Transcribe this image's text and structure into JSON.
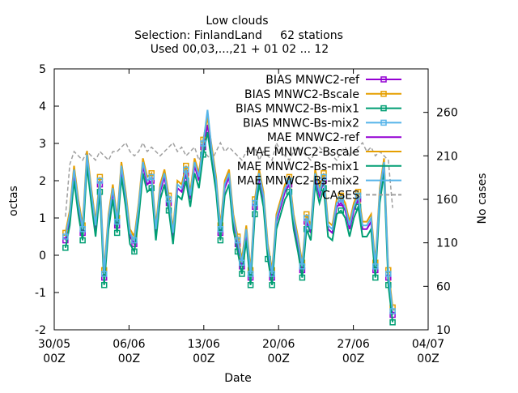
{
  "chart_data": {
    "type": "line",
    "title_lines": [
      "Low clouds",
      "Selection: FinlandLand     62 stations",
      "Used 00,03,...,21 + 01 02 ... 12"
    ],
    "xlabel": "Date",
    "ylabel": "octas",
    "y2label": "No cases",
    "ylim": [
      -2,
      5
    ],
    "yticks": [
      "-2",
      "-1",
      "0",
      "1",
      "2",
      "3",
      "4",
      "5"
    ],
    "y2lim": [
      10,
      310
    ],
    "y2ticks": [
      "10",
      "60",
      "110",
      "160",
      "210",
      "260"
    ],
    "xlim": [
      "2023-05-30 00Z",
      "2023-07-04 00Z"
    ],
    "xticks": [
      {
        "line1": "30/05",
        "line2": "00Z"
      },
      {
        "line1": "06/06",
        "line2": "00Z"
      },
      {
        "line1": "13/06",
        "line2": "00Z"
      },
      {
        "line1": "20/06",
        "line2": "00Z"
      },
      {
        "line1": "27/06",
        "line2": "00Z"
      },
      {
        "line1": "04/07",
        "line2": "00Z"
      }
    ],
    "grid": false,
    "legend_position": "top-right",
    "series": [
      {
        "name": "BIAS MNWC2-ref",
        "color": "#9400d3",
        "marker": "square",
        "axis": "y1",
        "values": [
          0.4,
          1.0,
          2.2,
          1.3,
          0.6,
          2.6,
          1.6,
          0.7,
          1.9,
          -0.6,
          0.9,
          1.7,
          0.8,
          2.3,
          1.5,
          0.5,
          0.3,
          1.2,
          2.4,
          1.9,
          2.0,
          0.6,
          1.7,
          2.1,
          1.4,
          0.5,
          1.8,
          1.7,
          2.2,
          1.5,
          2.4,
          2.0,
          2.9,
          3.5,
          2.7,
          1.9,
          0.6,
          1.8,
          2.1,
          0.9,
          0.3,
          -0.3,
          0.6,
          -0.6,
          1.3,
          2.1,
          1.5,
          0.1,
          -0.6,
          0.9,
          1.3,
          1.7,
          1.9,
          0.9,
          0.3,
          -0.4,
          0.9,
          0.6,
          2.1,
          1.6,
          2.0,
          0.7,
          0.6,
          1.3,
          1.4,
          1.2,
          0.7,
          1.2,
          1.5,
          0.7,
          0.7,
          0.9,
          -0.4,
          1.6,
          2.4,
          -0.6,
          -1.6
        ]
      },
      {
        "name": "BIAS MNWC2-Bscale",
        "color": "#e69f00",
        "marker": "square",
        "axis": "y1",
        "values": [
          0.6,
          1.2,
          2.4,
          1.5,
          0.8,
          2.8,
          1.8,
          0.9,
          2.1,
          -0.4,
          1.1,
          1.9,
          1.0,
          2.5,
          1.7,
          0.7,
          0.5,
          1.4,
          2.6,
          2.1,
          2.2,
          0.8,
          1.9,
          2.3,
          1.6,
          0.7,
          2.0,
          1.9,
          2.4,
          1.7,
          2.6,
          2.2,
          3.1,
          3.7,
          2.9,
          2.1,
          0.8,
          2.0,
          2.3,
          1.1,
          0.5,
          -0.1,
          0.8,
          -0.4,
          1.5,
          2.3,
          1.7,
          0.3,
          -0.4,
          1.1,
          1.5,
          1.9,
          2.1,
          1.1,
          0.5,
          -0.2,
          1.1,
          0.8,
          2.3,
          1.8,
          2.2,
          0.9,
          0.8,
          1.5,
          1.6,
          1.4,
          0.9,
          1.4,
          1.7,
          0.9,
          0.9,
          1.1,
          -0.2,
          1.8,
          2.6,
          -0.4,
          -1.4
        ]
      },
      {
        "name": "BIAS MNWC2-Bs-mix1",
        "color": "#009e73",
        "marker": "square",
        "axis": "y1",
        "values": [
          0.2,
          0.8,
          2.0,
          1.1,
          0.4,
          2.4,
          1.4,
          0.5,
          1.7,
          -0.8,
          0.7,
          1.5,
          0.6,
          2.1,
          1.3,
          0.3,
          0.1,
          1.0,
          2.2,
          1.7,
          1.8,
          0.4,
          1.5,
          1.9,
          1.2,
          0.3,
          1.6,
          1.5,
          2.0,
          1.3,
          2.2,
          1.8,
          2.7,
          3.3,
          2.5,
          1.7,
          0.4,
          1.6,
          1.9,
          0.7,
          0.1,
          -0.5,
          0.4,
          -0.8,
          1.1,
          1.9,
          1.3,
          -0.1,
          -0.8,
          0.7,
          1.1,
          1.5,
          1.7,
          0.7,
          0.1,
          -0.6,
          0.7,
          0.4,
          1.9,
          1.4,
          1.8,
          0.5,
          0.4,
          1.1,
          1.2,
          1.0,
          0.5,
          1.0,
          1.3,
          0.5,
          0.5,
          0.7,
          -0.6,
          1.4,
          2.2,
          -0.8,
          -1.8
        ]
      },
      {
        "name": "BIAS MNWC-Bs-mix2",
        "color": "#56b4e9",
        "marker": "square",
        "axis": "y1",
        "values": [
          0.5,
          1.1,
          2.3,
          1.4,
          0.7,
          2.7,
          1.7,
          0.8,
          2.0,
          -0.5,
          1.0,
          1.8,
          0.9,
          2.4,
          1.6,
          0.6,
          0.4,
          1.3,
          2.5,
          2.0,
          2.1,
          0.7,
          1.8,
          2.2,
          1.5,
          0.6,
          1.9,
          1.8,
          2.3,
          1.6,
          2.5,
          2.1,
          3.0,
          3.9,
          2.8,
          2.0,
          0.7,
          1.9,
          2.2,
          1.0,
          0.4,
          -0.2,
          0.7,
          -0.5,
          1.4,
          2.2,
          1.6,
          0.2,
          -0.5,
          1.0,
          1.4,
          1.8,
          2.0,
          1.0,
          0.4,
          -0.3,
          1.0,
          0.7,
          2.2,
          1.7,
          2.1,
          0.8,
          0.7,
          1.4,
          1.5,
          1.3,
          0.8,
          1.3,
          1.6,
          0.8,
          0.8,
          1.0,
          -0.3,
          1.7,
          2.5,
          -0.5,
          -1.5
        ]
      },
      {
        "name": "MAE MNWC2-ref",
        "color": "#9400d3",
        "marker": "none",
        "axis": "y1",
        "values": []
      },
      {
        "name": "MAE MNWC2-Bscale",
        "color": "#e69f00",
        "marker": "none",
        "axis": "y1",
        "values": []
      },
      {
        "name": "MAE MNWC2-Bs-mix1",
        "color": "#009e73",
        "marker": "none",
        "axis": "y1",
        "values": []
      },
      {
        "name": "MAE MNWC2-Bs-mix2",
        "color": "#56b4e9",
        "marker": "none",
        "axis": "y1",
        "values": []
      },
      {
        "name": "CASES",
        "color": "#a0a0a0",
        "marker": "none",
        "dashed": true,
        "axis": "y2",
        "values": [
          140,
          200,
          215,
          210,
          205,
          215,
          210,
          205,
          215,
          210,
          205,
          215,
          215,
          220,
          225,
          215,
          210,
          215,
          225,
          215,
          220,
          215,
          210,
          215,
          220,
          225,
          215,
          220,
          210,
          215,
          220,
          205,
          215,
          210,
          205,
          215,
          225,
          215,
          220,
          215,
          210,
          205,
          215,
          215,
          220,
          205,
          215,
          210,
          205,
          225,
          215,
          210,
          205,
          215,
          220,
          215,
          210,
          205,
          215,
          220,
          215,
          215,
          210,
          205,
          215,
          220,
          210,
          215,
          220,
          225,
          215,
          220,
          210,
          215,
          210,
          205,
          150
        ]
      }
    ]
  }
}
